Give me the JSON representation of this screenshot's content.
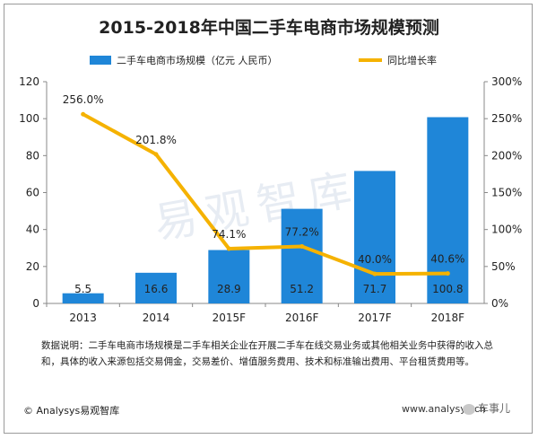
{
  "title": "2015-2018年中国二手车电商市场规模预测",
  "chart_data": {
    "type": "bar",
    "categories": [
      "2013",
      "2014",
      "2015F",
      "2016F",
      "2017F",
      "2018F"
    ],
    "series": [
      {
        "name": "二手车电商市场规模（亿元 人民币）",
        "type": "bar",
        "axis": "left",
        "values": [
          5.5,
          16.6,
          28.9,
          51.2,
          71.7,
          100.8
        ],
        "labels": [
          "5.5",
          "16.6",
          "28.9",
          "51.2",
          "71.7",
          "100.8"
        ],
        "color": "#1f86d8"
      },
      {
        "name": "同比增长率",
        "type": "line",
        "axis": "right",
        "values": [
          256.0,
          201.8,
          74.1,
          77.2,
          40.0,
          40.6
        ],
        "labels": [
          "256.0%",
          "201.8%",
          "74.1%",
          "77.2%",
          "40.0%",
          "40.6%"
        ],
        "color": "#f5b200"
      }
    ],
    "ylim_left": [
      0,
      120
    ],
    "yticks_left": [
      0,
      20,
      40,
      60,
      80,
      100,
      120
    ],
    "ylim_right": [
      0,
      300
    ],
    "yticks_right": [
      "0%",
      "50%",
      "100%",
      "150%",
      "200%",
      "250%",
      "300%"
    ],
    "legend_position": "top",
    "grid": false
  },
  "note": "数据说明：二手车电商市场规模是二手车相关企业在开展二手车在线交易业务或其他相关业务中获得的收入总和，具体的收入来源包括交易佣金，交易差价、增值服务费用、技术和标准输出费用、平台租赁费用等。",
  "source": "© Analysys易观智库",
  "url": "www.analysys.cn",
  "wechat_label": "车事儿",
  "watermark": "易观智库"
}
